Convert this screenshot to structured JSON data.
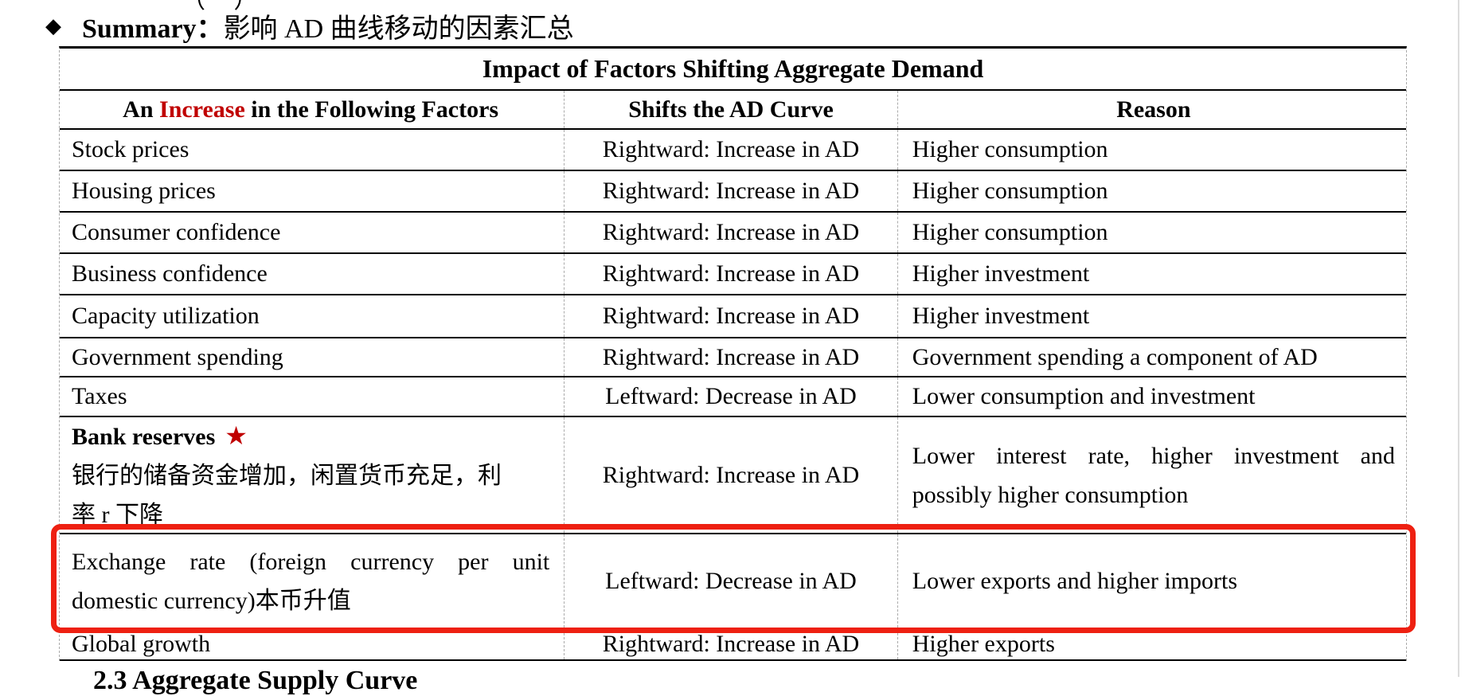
{
  "page": {
    "top_clipped_text": "（ ）",
    "footer_heading": "2.3 Aggregate Supply Curve"
  },
  "heading": {
    "bullet": "◆",
    "label": "Summary：",
    "text": "影响 AD 曲线移动的因素汇总"
  },
  "table": {
    "title": "Impact of Factors Shifting Aggregate Demand",
    "header": {
      "col1_prefix": "An ",
      "col1_highlight": "Increase",
      "col1_suffix": " in the Following Factors",
      "col2": "Shifts the AD Curve",
      "col3": "Reason"
    },
    "rows": [
      {
        "factor": "Stock prices",
        "shift": "Rightward: Increase in AD",
        "reason": "Higher consumption"
      },
      {
        "factor": "Housing prices",
        "shift": "Rightward: Increase in AD",
        "reason": "Higher consumption"
      },
      {
        "factor": "Consumer confidence",
        "shift": "Rightward: Increase in AD",
        "reason": "Higher consumption"
      },
      {
        "factor": "Business confidence",
        "shift": "Rightward: Increase in AD",
        "reason": "Higher investment"
      },
      {
        "factor": "Capacity utilization",
        "shift": "Rightward: Increase in AD",
        "reason": "Higher investment"
      },
      {
        "factor": "Government spending",
        "shift": "Rightward: Increase in AD",
        "reason": "Government spending a component of AD"
      },
      {
        "factor": "Taxes",
        "shift": "Leftward: Decrease in AD",
        "reason": "Lower consumption and investment"
      },
      {
        "factor": "Global growth",
        "shift": "Rightward: Increase in AD",
        "reason": "Higher exports"
      }
    ],
    "bank_row": {
      "factor_en": "Bank reserves",
      "star": "★",
      "factor_cn_line1": "银行的储备资金增加，闲置货币充足，利",
      "factor_cn_line2": "率 r 下降",
      "shift": "Rightward: Increase in AD",
      "reason_line1": "Lower interest rate, higher investment and",
      "reason_line2": "possibly higher consumption"
    },
    "exchange_row": {
      "factor_line1": "Exchange rate (foreign currency per unit",
      "factor_line2": "domestic currency)本币升值",
      "shift": "Leftward: Decrease in AD",
      "reason": "Lower exports and higher imports"
    }
  },
  "colors": {
    "accent_red": "#C00000",
    "highlight_box_red": "#EE2011",
    "gridline_gray": "#AAAAAA"
  }
}
